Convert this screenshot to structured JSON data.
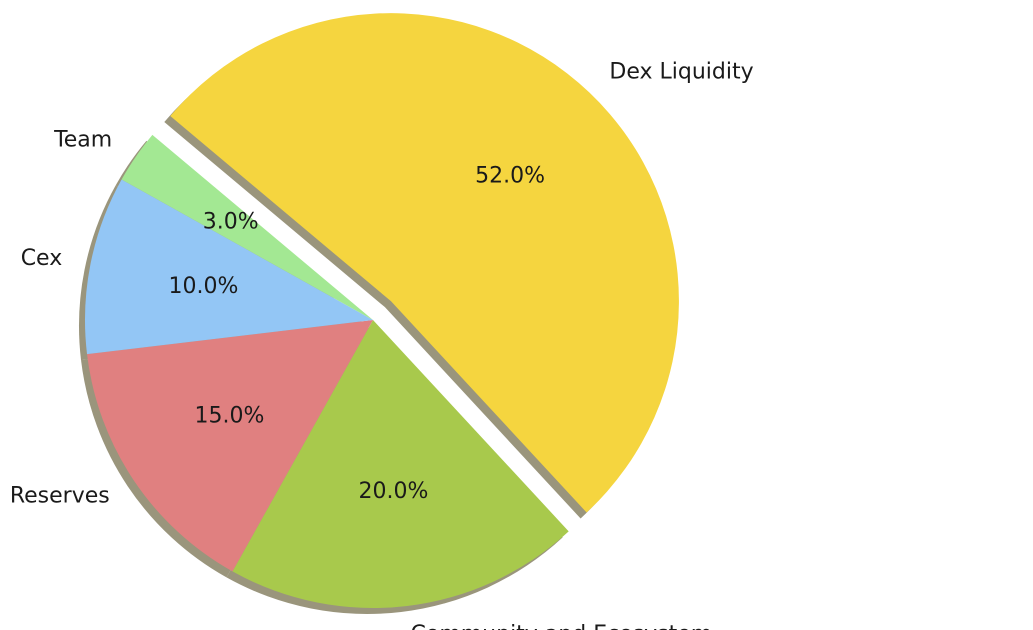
{
  "chart_data": {
    "type": "pie",
    "slices": [
      {
        "label": "Dex Liquidity",
        "value": 52.0,
        "pct_label": "52.0%",
        "color": "#f5d53f",
        "explode": true
      },
      {
        "label": "Community and Ecosystem",
        "value": 20.0,
        "pct_label": "20.0%",
        "color": "#a8c94c",
        "explode": false
      },
      {
        "label": "Reserves",
        "value": 15.0,
        "pct_label": "15.0%",
        "color": "#e08080",
        "explode": false
      },
      {
        "label": "Cex",
        "value": 10.0,
        "pct_label": "10.0%",
        "color": "#93c6f5",
        "explode": false
      },
      {
        "label": "Team",
        "value": 3.0,
        "pct_label": "3.0%",
        "color": "#a3e893",
        "explode": false
      }
    ],
    "start_angle_deg": 140,
    "direction": "clockwise",
    "shadow": true,
    "shadow_color": "#8f8a6e"
  }
}
